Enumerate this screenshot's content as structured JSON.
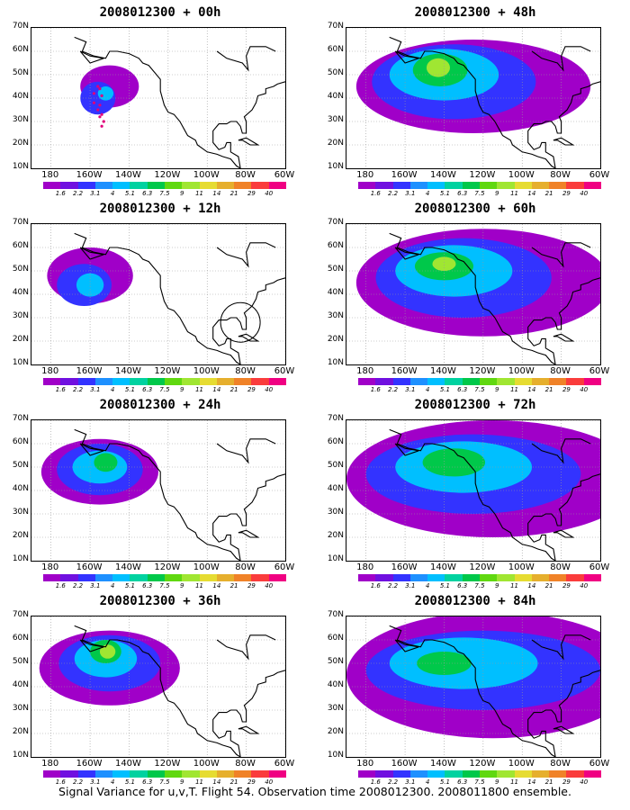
{
  "panels": [
    {
      "title": "2008012300 + 00h",
      "blobs": [
        [
          -150,
          45,
          15,
          9,
          1
        ],
        [
          -156,
          40,
          9,
          7,
          2
        ],
        [
          -152,
          42,
          4,
          3,
          3
        ]
      ],
      "track": true,
      "circle": false
    },
    {
      "title": "2008012300 + 12h",
      "blobs": [
        [
          -160,
          48,
          22,
          12,
          1
        ],
        [
          -163,
          44,
          14,
          9,
          2
        ],
        [
          -160,
          44,
          7,
          5,
          3
        ]
      ],
      "track": false,
      "circle": true
    },
    {
      "title": "2008012300 + 24h",
      "blobs": [
        [
          -155,
          48,
          30,
          14,
          1
        ],
        [
          -155,
          49,
          22,
          11,
          2
        ],
        [
          -155,
          50,
          14,
          7,
          3
        ],
        [
          -152,
          52,
          6,
          4,
          4
        ]
      ],
      "track": false,
      "circle": false
    },
    {
      "title": "2008012300 + 36h",
      "blobs": [
        [
          -150,
          48,
          36,
          16,
          1
        ],
        [
          -150,
          50,
          26,
          12,
          2
        ],
        [
          -152,
          52,
          16,
          8,
          3
        ],
        [
          -152,
          55,
          8,
          5,
          4
        ],
        [
          -151,
          55,
          4,
          3,
          5
        ]
      ],
      "track": false,
      "circle": false
    },
    {
      "title": "2008012300 + 48h",
      "blobs": [
        [
          -125,
          45,
          60,
          20,
          1
        ],
        [
          -135,
          47,
          42,
          16,
          2
        ],
        [
          -140,
          50,
          28,
          11,
          3
        ],
        [
          -142,
          52,
          14,
          7,
          4
        ],
        [
          -143,
          53,
          6,
          4,
          5
        ]
      ],
      "track": false,
      "circle": false
    },
    {
      "title": "2008012300 + 60h",
      "blobs": [
        [
          -120,
          45,
          65,
          23,
          1
        ],
        [
          -130,
          47,
          45,
          17,
          2
        ],
        [
          -135,
          50,
          30,
          11,
          3
        ],
        [
          -140,
          52,
          15,
          6,
          4
        ],
        [
          -140,
          53,
          6,
          3,
          5
        ]
      ],
      "track": false,
      "circle": false
    },
    {
      "title": "2008012300 + 72h",
      "blobs": [
        [
          -115,
          45,
          75,
          25,
          1
        ],
        [
          -125,
          47,
          55,
          17,
          2
        ],
        [
          -130,
          50,
          35,
          11,
          3
        ],
        [
          -135,
          52,
          16,
          6,
          4
        ]
      ],
      "track": false,
      "circle": false
    },
    {
      "title": "2008012300 + 84h",
      "blobs": [
        [
          -115,
          45,
          75,
          27,
          1
        ],
        [
          -120,
          47,
          60,
          17,
          2
        ],
        [
          -130,
          50,
          38,
          11,
          3
        ],
        [
          -140,
          50,
          14,
          5,
          4
        ]
      ],
      "track": false,
      "circle": false
    }
  ],
  "x_ticks": [
    "180",
    "160W",
    "140W",
    "120W",
    "100W",
    "80W",
    "60W"
  ],
  "y_ticks": [
    "70N",
    "60N",
    "50N",
    "40N",
    "30N",
    "20N",
    "10N"
  ],
  "colorbar": {
    "labels": [
      "1.6",
      "2.2",
      "3.1",
      "4",
      "5.1",
      "6.3",
      "7.5",
      "9",
      "11",
      "14",
      "21",
      "29",
      "40"
    ],
    "colors": [
      "#a000c8",
      "#7010e0",
      "#3333ff",
      "#1e90ff",
      "#00bfff",
      "#00d2a0",
      "#00c84a",
      "#60d810",
      "#a0e632",
      "#e6dc32",
      "#e6af2d",
      "#f08228",
      "#fa3c3c",
      "#f00082"
    ]
  },
  "footer": "Signal Variance for u,v,T. Flight 54. Observation time 2008012300. 2008011800 ensemble."
}
